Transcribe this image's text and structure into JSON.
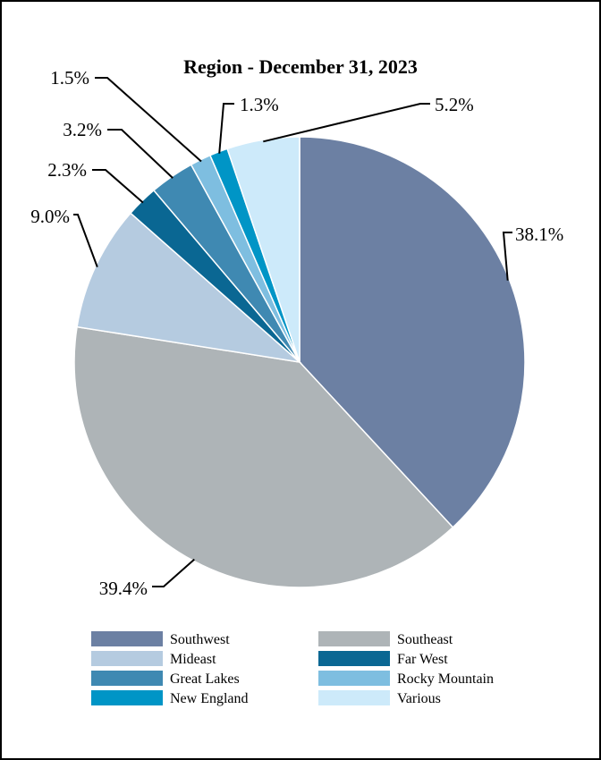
{
  "chart_data": {
    "type": "pie",
    "title": "Region - December 31, 2023",
    "slices": [
      {
        "label": "Southwest",
        "value": 38.1,
        "display": "38.1%",
        "color": "#6c80a3"
      },
      {
        "label": "Southeast",
        "value": 39.4,
        "display": "39.4%",
        "color": "#aeb4b7"
      },
      {
        "label": "Mideast",
        "value": 9.0,
        "display": "9.0%",
        "color": "#b5cbe0"
      },
      {
        "label": "Far West",
        "value": 2.3,
        "display": "2.3%",
        "color": "#0a6793"
      },
      {
        "label": "Great Lakes",
        "value": 3.2,
        "display": "3.2%",
        "color": "#3f89b2"
      },
      {
        "label": "Rocky Mountain",
        "value": 1.5,
        "display": "1.5%",
        "color": "#7ebee0"
      },
      {
        "label": "New England",
        "value": 1.3,
        "display": "1.3%",
        "color": "#0095c6"
      },
      {
        "label": "Various",
        "value": 5.2,
        "display": "5.2%",
        "color": "#cdeafa"
      }
    ],
    "legend_position": "bottom"
  }
}
